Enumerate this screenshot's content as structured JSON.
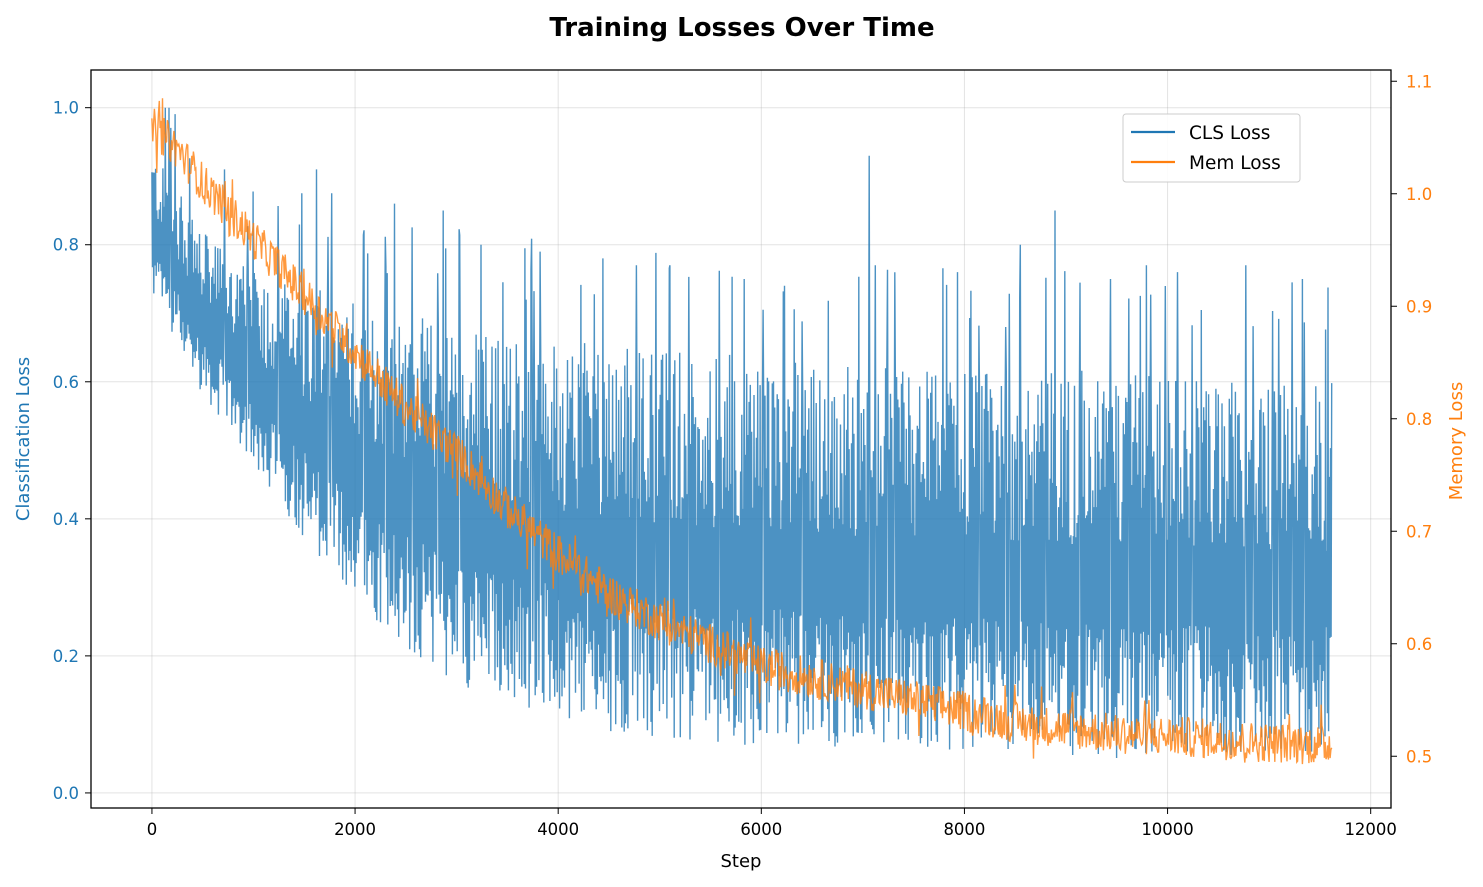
{
  "chart_data": {
    "type": "line",
    "title": "Training Losses Over Time",
    "xlabel": "Step",
    "ylabel_left": "Classification Loss",
    "ylabel_right": "Memory Loss",
    "xlim": [
      -600,
      12200
    ],
    "ylim_left": [
      -0.022,
      1.055
    ],
    "ylim_right": [
      0.454,
      1.11
    ],
    "x_ticks": [
      0,
      2000,
      4000,
      6000,
      8000,
      10000,
      12000
    ],
    "y_ticks_left": [
      0.0,
      0.2,
      0.4,
      0.6,
      0.8,
      1.0
    ],
    "y_ticks_right": [
      0.5,
      0.6,
      0.7,
      0.8,
      0.9,
      1.0,
      1.1
    ],
    "grid": true,
    "legend_position": "top-right",
    "colors": {
      "cls": "#1f77b4",
      "mem": "#ff7f0e"
    },
    "x_max_step": 11620,
    "series": [
      {
        "name": "CLS Loss",
        "axis": "left",
        "color": "#1f77b4",
        "x": [
          0,
          250,
          500,
          1000,
          1500,
          2000,
          2500,
          3000,
          3500,
          4000,
          4500,
          5000,
          5500,
          6000,
          6500,
          7000,
          7500,
          8000,
          8500,
          9000,
          9500,
          10000,
          10500,
          11000,
          11620
        ],
        "upper": [
          0.94,
          0.88,
          0.82,
          0.76,
          0.74,
          0.72,
          0.7,
          0.68,
          0.67,
          0.66,
          0.66,
          0.65,
          0.64,
          0.64,
          0.63,
          0.63,
          0.62,
          0.62,
          0.62,
          0.62,
          0.61,
          0.61,
          0.6,
          0.6,
          0.6
        ],
        "lower": [
          0.72,
          0.66,
          0.58,
          0.48,
          0.37,
          0.28,
          0.21,
          0.16,
          0.13,
          0.11,
          0.09,
          0.08,
          0.07,
          0.07,
          0.07,
          0.06,
          0.06,
          0.06,
          0.06,
          0.05,
          0.05,
          0.05,
          0.05,
          0.05,
          0.05
        ],
        "spikes": [
          [
            130,
            1.0
          ],
          [
            170,
            1.0
          ],
          [
            1620,
            0.91
          ],
          [
            2390,
            0.86
          ],
          [
            2870,
            0.85
          ],
          [
            3240,
            0.8
          ],
          [
            4440,
            0.78
          ],
          [
            4770,
            0.77
          ],
          [
            5100,
            0.77
          ],
          [
            5830,
            0.75
          ],
          [
            6230,
            0.74
          ],
          [
            7060,
            0.93
          ],
          [
            7120,
            0.77
          ],
          [
            7930,
            0.76
          ],
          [
            8550,
            0.8
          ],
          [
            8890,
            0.85
          ],
          [
            9440,
            0.75
          ],
          [
            9790,
            0.77
          ],
          [
            10100,
            0.76
          ],
          [
            10770,
            0.77
          ],
          [
            11330,
            0.75
          ]
        ]
      },
      {
        "name": "Mem Loss",
        "axis": "right",
        "color": "#ff7f0e",
        "x": [
          0,
          250,
          500,
          1000,
          1500,
          2000,
          2500,
          3000,
          3500,
          4000,
          4500,
          5000,
          5500,
          6000,
          6500,
          7000,
          7500,
          8000,
          8500,
          9000,
          9500,
          10000,
          10500,
          11000,
          11620
        ],
        "mean": [
          1.06,
          1.04,
          1.01,
          0.96,
          0.91,
          0.86,
          0.81,
          0.77,
          0.72,
          0.68,
          0.645,
          0.62,
          0.6,
          0.58,
          0.57,
          0.56,
          0.55,
          0.54,
          0.53,
          0.525,
          0.52,
          0.518,
          0.515,
          0.512,
          0.51
        ],
        "spread": 0.018
      }
    ]
  }
}
